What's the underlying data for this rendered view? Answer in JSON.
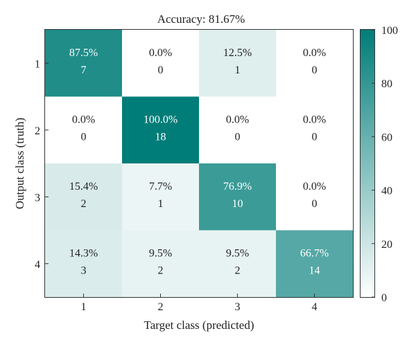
{
  "chart_data": {
    "type": "heatmap",
    "title": "Accuracy: 81.67%",
    "xlabel": "Target class (predicted)",
    "ylabel": "Output class (truth)",
    "x_categories": [
      "1",
      "2",
      "3",
      "4"
    ],
    "y_categories": [
      "1",
      "2",
      "3",
      "4"
    ],
    "percent_labels": [
      [
        "87.5%",
        "0.0%",
        "12.5%",
        "0.0%"
      ],
      [
        "0.0%",
        "100.0%",
        "0.0%",
        "0.0%"
      ],
      [
        "15.4%",
        "7.7%",
        "76.9%",
        "0.0%"
      ],
      [
        "14.3%",
        "9.5%",
        "9.5%",
        "66.7%"
      ]
    ],
    "percent_values": [
      [
        87.5,
        0.0,
        12.5,
        0.0
      ],
      [
        0.0,
        100.0,
        0.0,
        0.0
      ],
      [
        15.4,
        7.7,
        76.9,
        0.0
      ],
      [
        14.3,
        9.5,
        9.5,
        66.7
      ]
    ],
    "counts": [
      [
        "7",
        "0",
        "1",
        "0"
      ],
      [
        "0",
        "18",
        "0",
        "0"
      ],
      [
        "2",
        "1",
        "10",
        "0"
      ],
      [
        "3",
        "2",
        "2",
        "14"
      ]
    ],
    "colorbar": {
      "range": [
        0,
        100
      ],
      "ticks": [
        "0",
        "20",
        "40",
        "60",
        "80",
        "100"
      ],
      "color_low": "#ffffff",
      "color_high": "#007d78"
    },
    "text_color_dark": "#222222",
    "text_color_light": "#ffffff"
  }
}
